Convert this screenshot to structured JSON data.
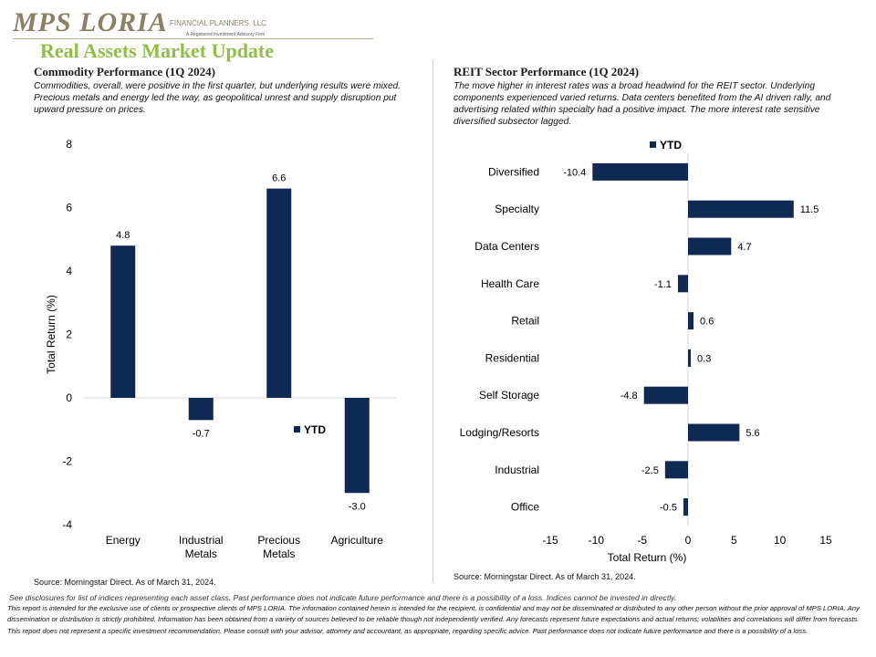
{
  "brand": {
    "logo_text": "MPS LORIA",
    "logo_sub": "FINANCIAL PLANNERS, LLC",
    "logo_tagline": "A Registered Investment Advisory Firm"
  },
  "page_title": "Real Assets Market Update",
  "left_panel": {
    "title": "Commodity Performance (1Q 2024)",
    "description": "Commodities, overall, were positive in the first quarter, but underlying results were mixed. Precious metals and energy led the way, as geopolitical unrest and supply disruption put upward pressure on prices.",
    "source": "Source: Morningstar Direct. As of March 31, 2024."
  },
  "right_panel": {
    "title": "REIT Sector Performance (1Q 2024)",
    "description": "The move higher in interest rates was a broad headwind for the REIT sector. Underlying components experienced varied returns. Data centers benefited from the AI driven rally, and advertising related within specialty had a positive impact. The more interest rate sensitive diversified subsector lagged.",
    "source": "Source: Morningstar Direct. As of March 31, 2024."
  },
  "chart_data": [
    {
      "type": "bar",
      "orientation": "vertical",
      "categories": [
        "Energy",
        "Industrial Metals",
        "Precious Metals",
        "Agriculture"
      ],
      "series": [
        {
          "name": "YTD",
          "values": [
            4.8,
            -0.7,
            6.6,
            -3.0
          ]
        }
      ],
      "data_labels": [
        "4.8",
        "-0.7",
        "6.6",
        "-3.0"
      ],
      "ylabel": "Total Return (%)",
      "ylim": [
        -4,
        8
      ],
      "yticks": [
        -4,
        -2,
        0,
        2,
        4,
        6,
        8
      ],
      "legend": "lower-right",
      "grid": false,
      "bar_color": "#0f2a52"
    },
    {
      "type": "bar",
      "orientation": "horizontal",
      "categories": [
        "Diversified",
        "Specialty",
        "Data Centers",
        "Health Care",
        "Retail",
        "Residential",
        "Self Storage",
        "Lodging/Resorts",
        "Industrial",
        "Office"
      ],
      "series": [
        {
          "name": "YTD",
          "values": [
            -10.4,
            11.5,
            4.7,
            -1.1,
            0.6,
            0.3,
            -4.8,
            5.6,
            -2.5,
            -0.5
          ]
        }
      ],
      "data_labels": [
        "-10.4",
        "11.5",
        "4.7",
        "-1.1",
        "0.6",
        "0.3",
        "-4.8",
        "5.6",
        "-2.5",
        "-0.5"
      ],
      "xlabel": "Total Return (%)",
      "xlim": [
        -15,
        15
      ],
      "xticks": [
        -15,
        -10,
        -5,
        0,
        5,
        10,
        15
      ],
      "legend": "top",
      "grid": false,
      "bar_color": "#0f2a52"
    }
  ],
  "footer": {
    "line1": "See disclosures for list of indices representing each asset class. Past performance does not indicate future performance and there is a possibility of a loss. Indices cannot be invested in directly.",
    "line2": "This report is intended for the exclusive use of clients or prospective clients of MPS LORIA. The information contained herein is intended for the recipient, is confidential and may not be disseminated or distributed to any other person without the prior approval of MPS LORIA. Any dissemination or distribution is strictly prohibited. Information has been obtained from a variety of sources believed to be reliable though not independently verified. Any forecasts represent future expectations and actual returns; volatilities and correlations will differ from forecasts. This report does not represent a specific investment recommendation. Please consult with your advisor, attorney and accountant, as appropriate, regarding specific advice. Past performance does not indicate future performance and there is a possibility of a loss."
  }
}
